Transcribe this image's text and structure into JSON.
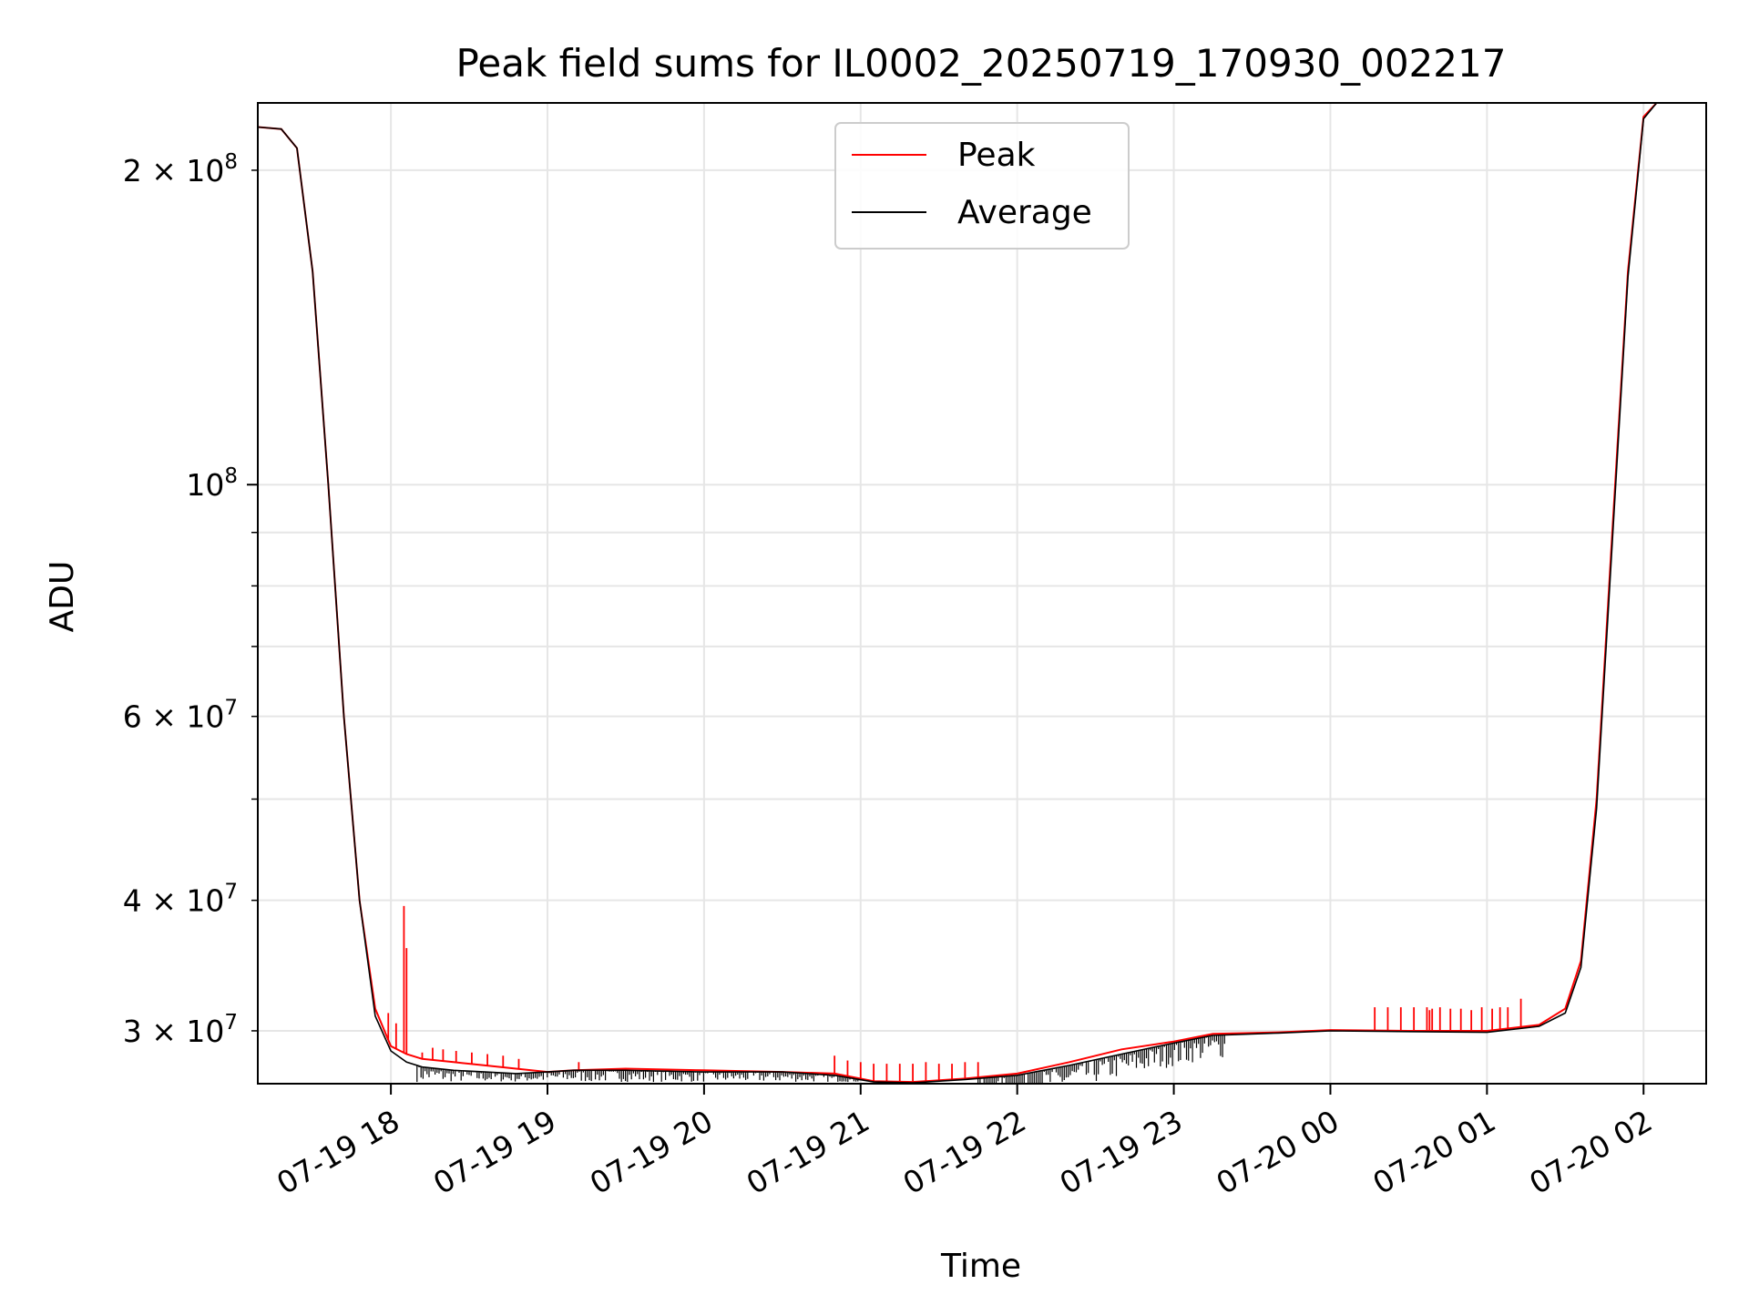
{
  "chart_data": {
    "type": "line",
    "title": "Peak field sums for IL0002_20250719_170930_002217",
    "xlabel": "Time",
    "ylabel": "ADU",
    "yscale": "log",
    "grid": true,
    "legend_position": "top-center",
    "x_range": [
      "2025-07-19 17:09",
      "2025-07-20 02:24"
    ],
    "ylim": [
      26700000,
      232000000
    ],
    "x_ticks": [
      {
        "t": "2025-07-19 18:00",
        "label": "07-19 18"
      },
      {
        "t": "2025-07-19 19:00",
        "label": "07-19 19"
      },
      {
        "t": "2025-07-19 20:00",
        "label": "07-19 20"
      },
      {
        "t": "2025-07-19 21:00",
        "label": "07-19 21"
      },
      {
        "t": "2025-07-19 22:00",
        "label": "07-19 22"
      },
      {
        "t": "2025-07-19 23:00",
        "label": "07-19 23"
      },
      {
        "t": "2025-07-20 00:00",
        "label": "07-20 00"
      },
      {
        "t": "2025-07-20 01:00",
        "label": "07-20 01"
      },
      {
        "t": "2025-07-20 02:00",
        "label": "07-20 02"
      }
    ],
    "y_ticks": [
      {
        "value": 30000000,
        "mant": "3",
        "exp": "7",
        "major": false
      },
      {
        "value": 40000000,
        "mant": "4",
        "exp": "7",
        "major": false
      },
      {
        "value": 60000000,
        "mant": "6",
        "exp": "7",
        "major": false
      },
      {
        "value": 100000000,
        "mant": "",
        "exp": "8",
        "major": true
      },
      {
        "value": 200000000,
        "mant": "2",
        "exp": "8",
        "major": false
      }
    ],
    "y_minor_unlabeled": [
      50000000,
      70000000,
      80000000,
      90000000
    ],
    "series": [
      {
        "name": "Peak",
        "color": "#ff0000",
        "points": [
          [
            "2025-07-19 17:09",
            220000000
          ],
          [
            "2025-07-19 17:18",
            219000000
          ],
          [
            "2025-07-19 17:24",
            210000000
          ],
          [
            "2025-07-19 17:30",
            160000000
          ],
          [
            "2025-07-19 17:36",
            100000000
          ],
          [
            "2025-07-19 17:42",
            60000000
          ],
          [
            "2025-07-19 17:48",
            40000000
          ],
          [
            "2025-07-19 17:54",
            31500000
          ],
          [
            "2025-07-19 18:00",
            29000000
          ],
          [
            "2025-07-19 18:06",
            28500000
          ],
          [
            "2025-07-19 18:12",
            28200000
          ],
          [
            "2025-07-19 18:24",
            28000000
          ],
          [
            "2025-07-19 18:36",
            27800000
          ],
          [
            "2025-07-19 18:48",
            27600000
          ],
          [
            "2025-07-19 19:00",
            27400000
          ],
          [
            "2025-07-19 19:10",
            27500000
          ],
          [
            "2025-07-19 19:30",
            27600000
          ],
          [
            "2025-07-19 20:00",
            27500000
          ],
          [
            "2025-07-19 20:30",
            27400000
          ],
          [
            "2025-07-19 20:50",
            27300000
          ],
          [
            "2025-07-19 21:05",
            26850000
          ],
          [
            "2025-07-19 21:20",
            26800000
          ],
          [
            "2025-07-19 21:40",
            27000000
          ],
          [
            "2025-07-19 22:00",
            27300000
          ],
          [
            "2025-07-19 22:20",
            28000000
          ],
          [
            "2025-07-19 22:40",
            28800000
          ],
          [
            "2025-07-19 23:00",
            29300000
          ],
          [
            "2025-07-19 23:15",
            29800000
          ],
          [
            "2025-07-19 23:40",
            29900000
          ],
          [
            "2025-07-20 00:00",
            30050000
          ],
          [
            "2025-07-20 00:30",
            30000000
          ],
          [
            "2025-07-20 01:00",
            30000000
          ],
          [
            "2025-07-20 01:20",
            30400000
          ],
          [
            "2025-07-20 01:30",
            31500000
          ],
          [
            "2025-07-20 01:36",
            35000000
          ],
          [
            "2025-07-20 01:42",
            50000000
          ],
          [
            "2025-07-20 01:48",
            90000000
          ],
          [
            "2025-07-20 01:54",
            160000000
          ],
          [
            "2025-07-20 02:00",
            225000000
          ],
          [
            "2025-07-20 02:05",
            232000000
          ]
        ],
        "spikes": [
          [
            "2025-07-19 17:59",
            31200000
          ],
          [
            "2025-07-19 18:02",
            30500000
          ],
          [
            "2025-07-19 18:05",
            39500000
          ],
          [
            "2025-07-19 18:06",
            36000000
          ],
          [
            "2025-07-19 18:12",
            28600000
          ],
          [
            "2025-07-19 18:16",
            28900000
          ],
          [
            "2025-07-19 18:20",
            28800000
          ],
          [
            "2025-07-19 18:25",
            28700000
          ],
          [
            "2025-07-19 18:31",
            28600000
          ],
          [
            "2025-07-19 18:37",
            28500000
          ],
          [
            "2025-07-19 18:43",
            28400000
          ],
          [
            "2025-07-19 18:49",
            28200000
          ],
          [
            "2025-07-19 19:12",
            28000000
          ],
          [
            "2025-07-19 20:50",
            28400000
          ],
          [
            "2025-07-19 20:55",
            28100000
          ],
          [
            "2025-07-19 21:00",
            28000000
          ],
          [
            "2025-07-19 21:05",
            27900000
          ],
          [
            "2025-07-19 21:10",
            27900000
          ],
          [
            "2025-07-19 21:15",
            27900000
          ],
          [
            "2025-07-19 21:20",
            27900000
          ],
          [
            "2025-07-19 21:25",
            28000000
          ],
          [
            "2025-07-19 21:30",
            27900000
          ],
          [
            "2025-07-19 21:35",
            27900000
          ],
          [
            "2025-07-19 21:40",
            28000000
          ],
          [
            "2025-07-19 21:45",
            28000000
          ],
          [
            "2025-07-20 00:17",
            31600000
          ],
          [
            "2025-07-20 00:22",
            31600000
          ],
          [
            "2025-07-20 00:27",
            31600000
          ],
          [
            "2025-07-20 00:32",
            31600000
          ],
          [
            "2025-07-20 00:37",
            31600000
          ],
          [
            "2025-07-20 00:38",
            31400000
          ],
          [
            "2025-07-20 00:39",
            31500000
          ],
          [
            "2025-07-20 00:42",
            31600000
          ],
          [
            "2025-07-20 00:46",
            31500000
          ],
          [
            "2025-07-20 00:50",
            31500000
          ],
          [
            "2025-07-20 00:54",
            31400000
          ],
          [
            "2025-07-20 00:58",
            31600000
          ],
          [
            "2025-07-20 01:02",
            31500000
          ],
          [
            "2025-07-20 01:05",
            31600000
          ],
          [
            "2025-07-20 01:08",
            31600000
          ],
          [
            "2025-07-20 01:13",
            32200000
          ]
        ]
      },
      {
        "name": "Average",
        "color": "#000000",
        "points": [
          [
            "2025-07-19 17:09",
            220000000
          ],
          [
            "2025-07-19 17:18",
            219000000
          ],
          [
            "2025-07-19 17:24",
            210000000
          ],
          [
            "2025-07-19 17:30",
            160000000
          ],
          [
            "2025-07-19 17:36",
            100000000
          ],
          [
            "2025-07-19 17:42",
            60000000
          ],
          [
            "2025-07-19 17:48",
            40000000
          ],
          [
            "2025-07-19 17:54",
            31000000
          ],
          [
            "2025-07-19 18:00",
            28700000
          ],
          [
            "2025-07-19 18:06",
            28000000
          ],
          [
            "2025-07-19 18:12",
            27700000
          ],
          [
            "2025-07-19 18:24",
            27500000
          ],
          [
            "2025-07-19 18:36",
            27400000
          ],
          [
            "2025-07-19 18:48",
            27300000
          ],
          [
            "2025-07-19 19:00",
            27400000
          ],
          [
            "2025-07-19 19:10",
            27500000
          ],
          [
            "2025-07-19 19:30",
            27500000
          ],
          [
            "2025-07-19 20:00",
            27400000
          ],
          [
            "2025-07-19 20:30",
            27400000
          ],
          [
            "2025-07-19 20:50",
            27200000
          ],
          [
            "2025-07-19 21:05",
            26800000
          ],
          [
            "2025-07-19 21:20",
            26750000
          ],
          [
            "2025-07-19 21:40",
            26950000
          ],
          [
            "2025-07-19 22:00",
            27200000
          ],
          [
            "2025-07-19 22:20",
            27800000
          ],
          [
            "2025-07-19 22:40",
            28500000
          ],
          [
            "2025-07-19 23:00",
            29200000
          ],
          [
            "2025-07-19 23:15",
            29700000
          ],
          [
            "2025-07-19 23:40",
            29850000
          ],
          [
            "2025-07-20 00:00",
            30000000
          ],
          [
            "2025-07-20 00:30",
            29950000
          ],
          [
            "2025-07-20 01:00",
            29900000
          ],
          [
            "2025-07-20 01:20",
            30300000
          ],
          [
            "2025-07-20 01:30",
            31200000
          ],
          [
            "2025-07-20 01:36",
            34500000
          ],
          [
            "2025-07-20 01:42",
            49000000
          ],
          [
            "2025-07-20 01:48",
            88000000
          ],
          [
            "2025-07-20 01:54",
            158000000
          ],
          [
            "2025-07-20 02:00",
            224000000
          ],
          [
            "2025-07-20 02:05",
            232000000
          ]
        ],
        "noise": [
          {
            "from": "2025-07-19 18:10",
            "to": "2025-07-19 21:00",
            "low": 26800000
          },
          {
            "from": "2025-07-19 21:45",
            "to": "2025-07-19 23:20",
            "low_factor": 0.95
          }
        ]
      }
    ]
  }
}
